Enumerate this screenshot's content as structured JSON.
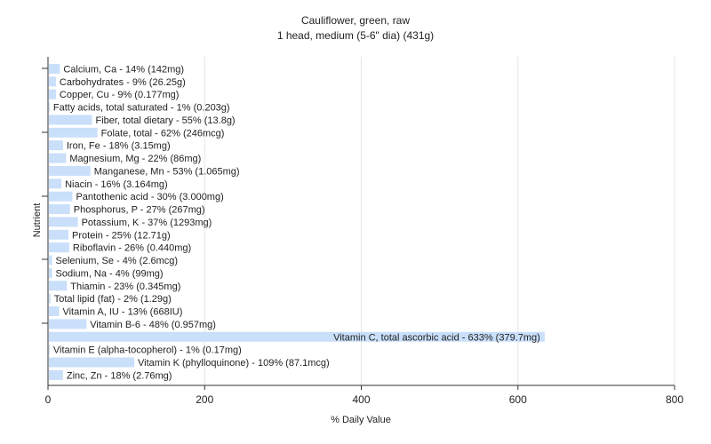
{
  "chart_data": {
    "type": "bar",
    "orientation": "horizontal",
    "title": "Cauliflower, green, raw",
    "subtitle": "1 head, medium (5-6\" dia) (431g)",
    "xlabel": "% Daily Value",
    "ylabel": "Nutrient",
    "xlim": [
      0,
      800
    ],
    "xticks": [
      0,
      200,
      400,
      600,
      800
    ],
    "grid": true,
    "bar_color": "#c9dffa",
    "categories": [
      "Calcium, Ca - 14% (142mg)",
      "Carbohydrates - 9% (26.25g)",
      "Copper, Cu - 9% (0.177mg)",
      "Fatty acids, total saturated - 1% (0.203g)",
      "Fiber, total dietary - 55% (13.8g)",
      "Folate, total - 62% (246mcg)",
      "Iron, Fe - 18% (3.15mg)",
      "Magnesium, Mg - 22% (86mg)",
      "Manganese, Mn - 53% (1.065mg)",
      "Niacin - 16% (3.164mg)",
      "Pantothenic acid - 30% (3.000mg)",
      "Phosphorus, P - 27% (267mg)",
      "Potassium, K - 37% (1293mg)",
      "Protein - 25% (12.71g)",
      "Riboflavin - 26% (0.440mg)",
      "Selenium, Se - 4% (2.6mcg)",
      "Sodium, Na - 4% (99mg)",
      "Thiamin - 23% (0.345mg)",
      "Total lipid (fat) - 2% (1.29g)",
      "Vitamin A, IU - 13% (668IU)",
      "Vitamin B-6 - 48% (0.957mg)",
      "Vitamin C, total ascorbic acid - 633% (379.7mg)",
      "Vitamin E (alpha-tocopherol) - 1% (0.17mg)",
      "Vitamin K (phylloquinone) - 109% (87.1mcg)",
      "Zinc, Zn - 18% (2.76mg)"
    ],
    "values": [
      14,
      9,
      9,
      1,
      55,
      62,
      18,
      22,
      53,
      16,
      30,
      27,
      37,
      25,
      26,
      4,
      4,
      23,
      2,
      13,
      48,
      633,
      1,
      109,
      18
    ]
  }
}
